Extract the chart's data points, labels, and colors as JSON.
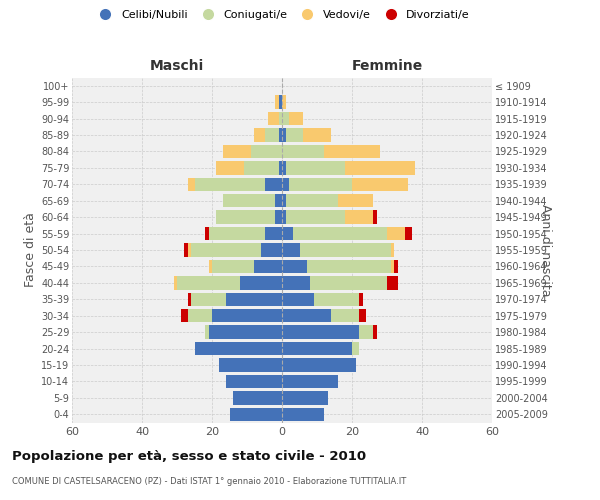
{
  "age_groups": [
    "0-4",
    "5-9",
    "10-14",
    "15-19",
    "20-24",
    "25-29",
    "30-34",
    "35-39",
    "40-44",
    "45-49",
    "50-54",
    "55-59",
    "60-64",
    "65-69",
    "70-74",
    "75-79",
    "80-84",
    "85-89",
    "90-94",
    "95-99",
    "100+"
  ],
  "birth_years": [
    "2005-2009",
    "2000-2004",
    "1995-1999",
    "1990-1994",
    "1985-1989",
    "1980-1984",
    "1975-1979",
    "1970-1974",
    "1965-1969",
    "1960-1964",
    "1955-1959",
    "1950-1954",
    "1945-1949",
    "1940-1944",
    "1935-1939",
    "1930-1934",
    "1925-1929",
    "1920-1924",
    "1915-1919",
    "1910-1914",
    "≤ 1909"
  ],
  "colors": {
    "celibi": "#4472b8",
    "coniugati": "#c5d9a0",
    "vedovi": "#f9c96e",
    "divorziati": "#cc0000"
  },
  "maschi": {
    "celibi": [
      15,
      14,
      16,
      18,
      25,
      21,
      20,
      16,
      12,
      8,
      6,
      5,
      2,
      2,
      5,
      1,
      0,
      1,
      0,
      1,
      0
    ],
    "coniugati": [
      0,
      0,
      0,
      0,
      0,
      1,
      7,
      10,
      18,
      12,
      20,
      16,
      17,
      15,
      20,
      10,
      9,
      4,
      1,
      0,
      0
    ],
    "vedovi": [
      0,
      0,
      0,
      0,
      0,
      0,
      0,
      0,
      1,
      1,
      1,
      0,
      0,
      0,
      2,
      8,
      8,
      3,
      3,
      1,
      0
    ],
    "divorziati": [
      0,
      0,
      0,
      0,
      0,
      0,
      2,
      1,
      0,
      0,
      1,
      1,
      0,
      0,
      0,
      0,
      0,
      0,
      0,
      0,
      0
    ]
  },
  "femmine": {
    "celibi": [
      12,
      13,
      16,
      21,
      20,
      22,
      14,
      9,
      8,
      7,
      5,
      3,
      1,
      1,
      2,
      1,
      0,
      1,
      0,
      0,
      0
    ],
    "coniugati": [
      0,
      0,
      0,
      0,
      2,
      4,
      8,
      13,
      22,
      24,
      26,
      27,
      17,
      15,
      18,
      17,
      12,
      5,
      2,
      0,
      0
    ],
    "vedovi": [
      0,
      0,
      0,
      0,
      0,
      0,
      0,
      0,
      0,
      1,
      1,
      5,
      8,
      10,
      16,
      20,
      16,
      8,
      4,
      1,
      0
    ],
    "divorziati": [
      0,
      0,
      0,
      0,
      0,
      1,
      2,
      1,
      3,
      1,
      0,
      2,
      1,
      0,
      0,
      0,
      0,
      0,
      0,
      0,
      0
    ]
  },
  "title": "Popolazione per età, sesso e stato civile - 2010",
  "subtitle": "COMUNE DI CASTELSARACENO (PZ) - Dati ISTAT 1° gennaio 2010 - Elaborazione TUTTITALIA.IT",
  "xlabel_left": "Maschi",
  "xlabel_right": "Femmine",
  "ylabel": "Fasce di età",
  "ylabel_right": "Anni di nascita",
  "xlim": 60,
  "legend_labels": [
    "Celibi/Nubili",
    "Coniugati/e",
    "Vedovi/e",
    "Divorziati/e"
  ],
  "bg_color": "#f0f0f0",
  "grid_color": "#cccccc"
}
